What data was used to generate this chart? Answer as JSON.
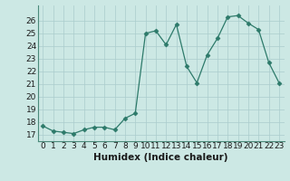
{
  "x": [
    0,
    1,
    2,
    3,
    4,
    5,
    6,
    7,
    8,
    9,
    10,
    11,
    12,
    13,
    14,
    15,
    16,
    17,
    18,
    19,
    20,
    21,
    22,
    23
  ],
  "y": [
    17.7,
    17.3,
    17.2,
    17.1,
    17.4,
    17.6,
    17.6,
    17.4,
    18.3,
    18.7,
    25.0,
    25.2,
    24.1,
    25.7,
    22.4,
    21.1,
    23.3,
    24.6,
    26.3,
    26.4,
    25.8,
    25.3,
    22.7,
    21.1
  ],
  "line_color": "#2d7a6a",
  "marker": "D",
  "marker_size": 2.5,
  "bg_color": "#cce8e4",
  "grid_color": "#aacccc",
  "xlabel": "Humidex (Indice chaleur)",
  "ylim": [
    16.5,
    27.2
  ],
  "xlim": [
    -0.5,
    23.5
  ],
  "yticks": [
    17,
    18,
    19,
    20,
    21,
    22,
    23,
    24,
    25,
    26
  ],
  "xticks": [
    0,
    1,
    2,
    3,
    4,
    5,
    6,
    7,
    8,
    9,
    10,
    11,
    12,
    13,
    14,
    15,
    16,
    17,
    18,
    19,
    20,
    21,
    22,
    23
  ],
  "xlabel_fontsize": 7.5,
  "tick_fontsize": 6.5
}
